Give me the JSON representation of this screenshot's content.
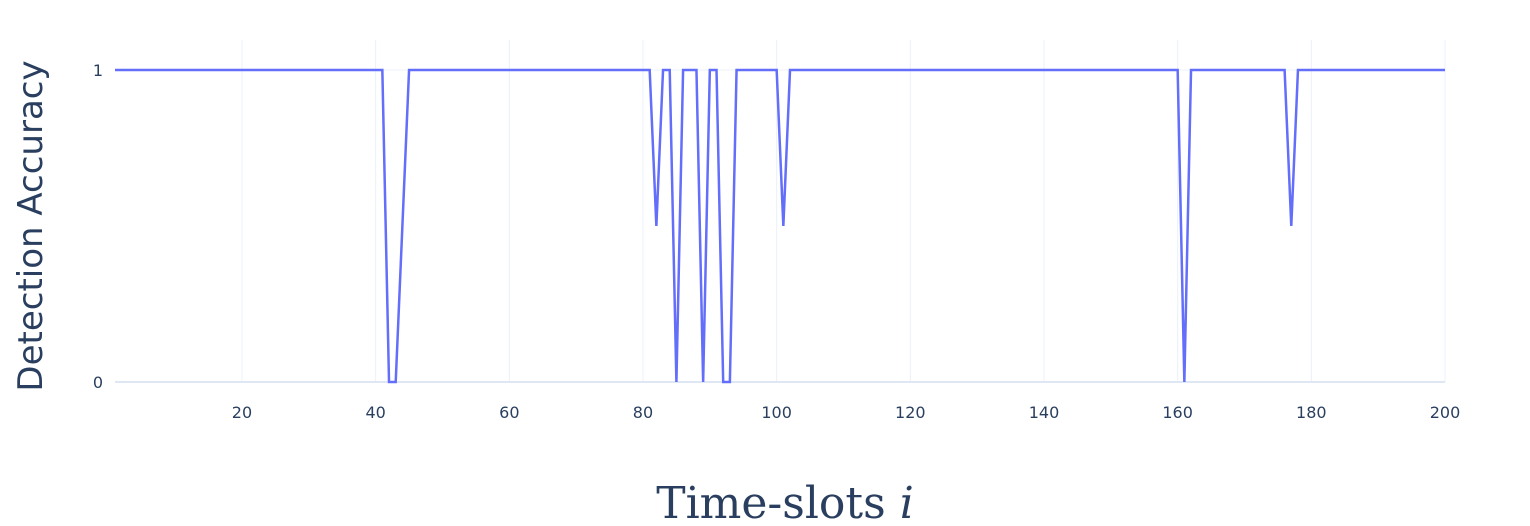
{
  "chart_data": {
    "type": "line",
    "title": "",
    "xlabel": "Time-slots",
    "xlabel_var": "i",
    "ylabel": "Detection Accuracy",
    "xlim": [
      1,
      200
    ],
    "ylim": [
      0,
      1
    ],
    "x_ticks": [
      20,
      40,
      60,
      80,
      100,
      120,
      140,
      160,
      180,
      200
    ],
    "y_ticks": [
      0,
      1
    ],
    "grid": true,
    "line_color": "#636efa",
    "grid_color": "#ebf0f8",
    "zero_line_color": "#dfe6f4",
    "text_color": "#2a3f5f",
    "series": [
      {
        "points": [
          [
            1,
            1
          ],
          [
            41,
            1
          ],
          [
            42,
            0
          ],
          [
            43,
            0
          ],
          [
            44,
            0.5
          ],
          [
            45,
            1
          ],
          [
            81,
            1
          ],
          [
            82,
            0.5
          ],
          [
            83,
            1
          ],
          [
            84,
            1
          ],
          [
            85,
            0
          ],
          [
            86,
            1
          ],
          [
            87,
            1
          ],
          [
            88,
            1
          ],
          [
            89,
            0
          ],
          [
            90,
            1
          ],
          [
            91,
            1
          ],
          [
            92,
            0
          ],
          [
            93,
            0
          ],
          [
            94,
            1
          ],
          [
            100,
            1
          ],
          [
            101,
            0.5
          ],
          [
            102,
            1
          ],
          [
            160,
            1
          ],
          [
            161,
            0
          ],
          [
            162,
            1
          ],
          [
            176,
            1
          ],
          [
            177,
            0.5
          ],
          [
            178,
            1
          ],
          [
            200,
            1
          ]
        ]
      }
    ]
  }
}
